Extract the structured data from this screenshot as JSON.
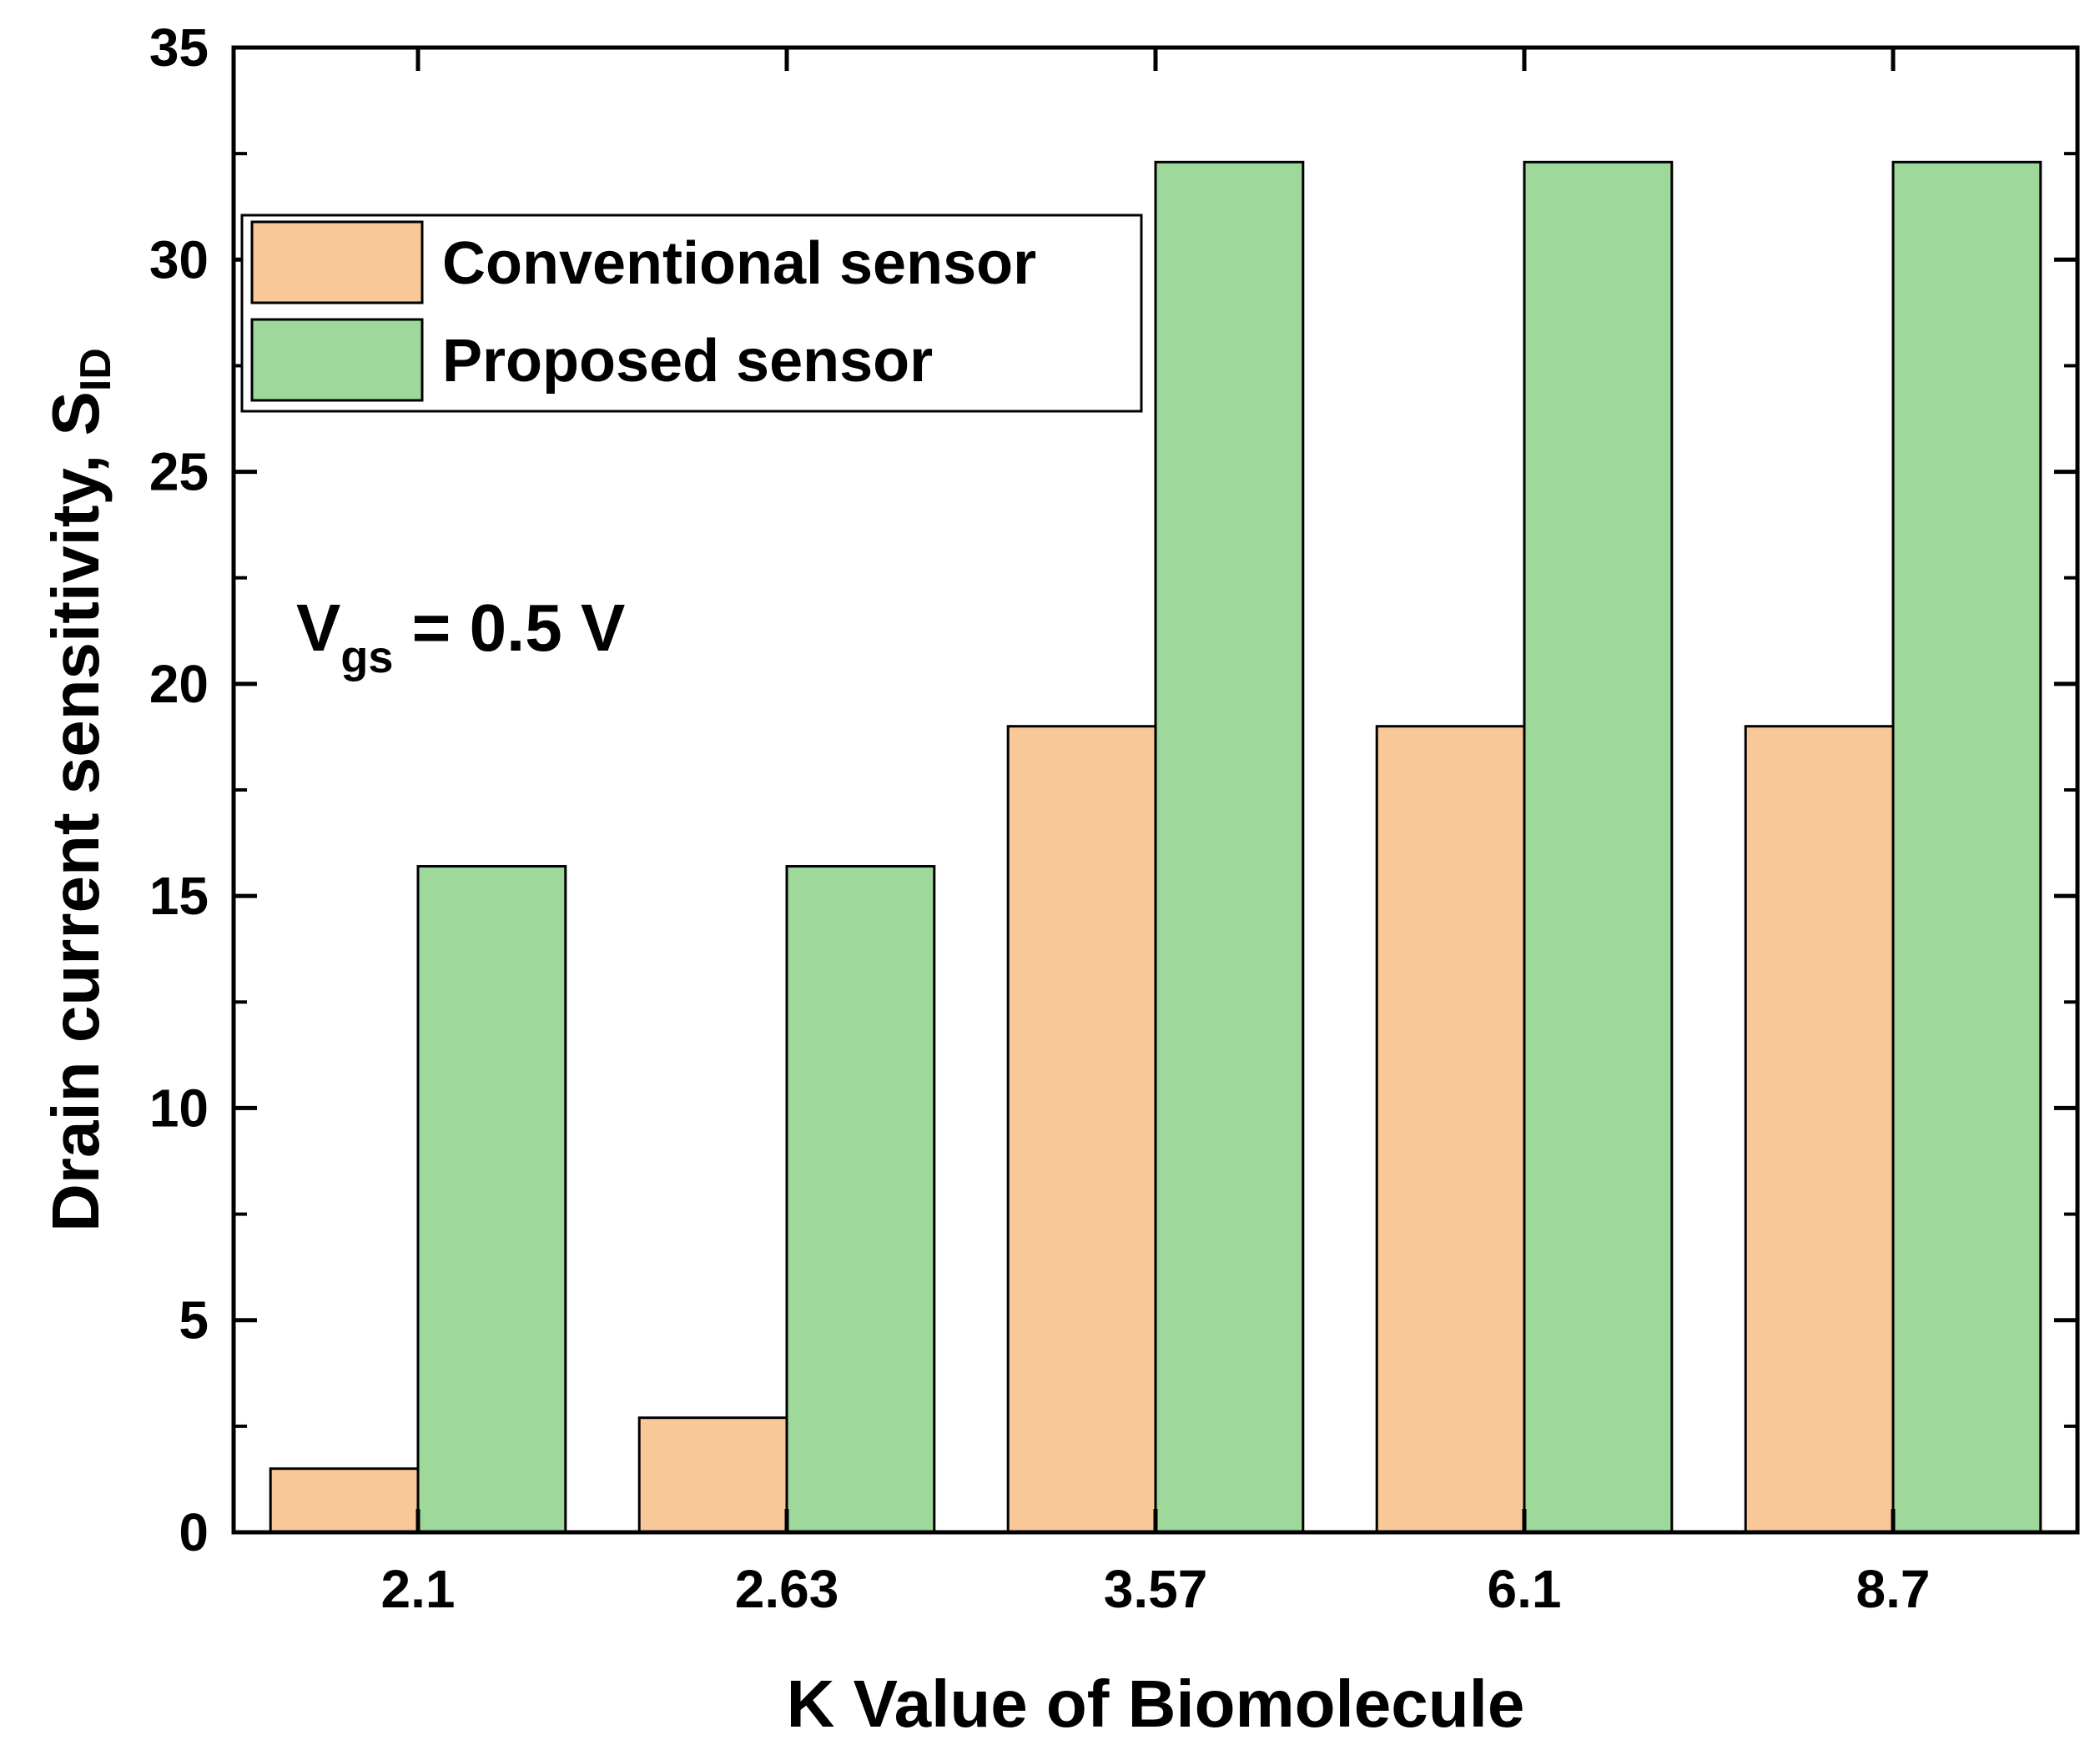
{
  "chart_data": {
    "type": "bar",
    "categories": [
      "2.1",
      "2.63",
      "3.57",
      "6.1",
      "8.7"
    ],
    "series": [
      {
        "name": "Conventional sensor",
        "values": [
          1.5,
          2.7,
          19.0,
          19.0,
          19.0
        ],
        "color": "#f9c898"
      },
      {
        "name": "Proposed sensor",
        "values": [
          15.7,
          15.7,
          32.3,
          32.3,
          32.3
        ],
        "color": "#9ed89a"
      }
    ],
    "xlabel": "K Value of Biomolecule",
    "ylabel": {
      "main": "Drain current sensitivity, S",
      "subscript": "ID"
    },
    "ylim": [
      0,
      35
    ],
    "yticks": [
      "0",
      "5",
      "10",
      "15",
      "20",
      "25",
      "30",
      "35"
    ],
    "annotation": {
      "main": "V",
      "subscript": "gs",
      "rest": " = 0.5 V"
    },
    "legend_position": "top-left",
    "grid": false
  }
}
